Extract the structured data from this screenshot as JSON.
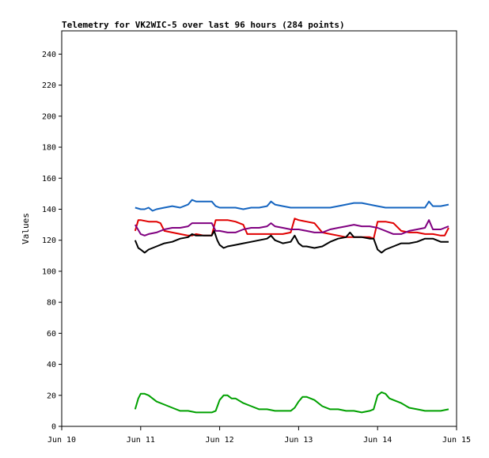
{
  "chart_data": {
    "type": "line",
    "title": "Telemetry for VK2WIC-5 over last 96 hours (284 points)",
    "xlabel": "",
    "ylabel": "Values",
    "ylim": [
      0,
      255
    ],
    "xlim": [
      "Jun 10",
      "Jun 15"
    ],
    "x_ticks": [
      "Jun 10",
      "Jun 11",
      "Jun 12",
      "Jun 13",
      "Jun 14",
      "Jun 15"
    ],
    "y_ticks": [
      0,
      20,
      40,
      60,
      80,
      100,
      120,
      140,
      160,
      180,
      200,
      220,
      240
    ],
    "grid": false,
    "legend": "none",
    "x_units": "day of June",
    "series": [
      {
        "color": "#1565c0",
        "x": [
          10.93,
          11.0,
          11.05,
          11.1,
          11.15,
          11.2,
          11.3,
          11.4,
          11.5,
          11.6,
          11.65,
          11.7,
          11.8,
          11.9,
          11.95,
          12.0,
          12.1,
          12.2,
          12.3,
          12.4,
          12.5,
          12.6,
          12.65,
          12.7,
          12.8,
          12.9,
          13.0,
          13.1,
          13.2,
          13.3,
          13.4,
          13.5,
          13.6,
          13.7,
          13.8,
          13.9,
          14.0,
          14.1,
          14.2,
          14.3,
          14.4,
          14.5,
          14.6,
          14.65,
          14.7,
          14.8,
          14.9
        ],
        "values": [
          141,
          140,
          140,
          141,
          139,
          140,
          141,
          142,
          141,
          143,
          146,
          145,
          145,
          145,
          142,
          141,
          141,
          141,
          140,
          141,
          141,
          142,
          145,
          143,
          142,
          141,
          141,
          141,
          141,
          141,
          141,
          142,
          143,
          144,
          144,
          143,
          142,
          141,
          141,
          141,
          141,
          141,
          141,
          145,
          142,
          142,
          143
        ]
      },
      {
        "color": "#e00000",
        "x": [
          10.93,
          10.97,
          11.0,
          11.1,
          11.2,
          11.25,
          11.3,
          11.4,
          11.5,
          11.6,
          11.65,
          11.7,
          11.8,
          11.9,
          11.95,
          12.0,
          12.1,
          12.2,
          12.3,
          12.35,
          12.4,
          12.5,
          12.6,
          12.7,
          12.8,
          12.9,
          12.95,
          13.0,
          13.1,
          13.2,
          13.3,
          13.4,
          13.5,
          13.6,
          13.7,
          13.8,
          13.9,
          13.95,
          14.0,
          14.1,
          14.2,
          14.3,
          14.4,
          14.5,
          14.6,
          14.7,
          14.8,
          14.85,
          14.9
        ],
        "values": [
          126,
          133,
          133,
          132,
          132,
          131,
          126,
          125,
          124,
          123,
          123,
          124,
          123,
          123,
          133,
          133,
          133,
          132,
          130,
          124,
          124,
          124,
          124,
          124,
          124,
          125,
          134,
          133,
          132,
          131,
          125,
          124,
          123,
          122,
          122,
          122,
          122,
          121,
          132,
          132,
          131,
          126,
          125,
          125,
          124,
          124,
          123,
          123,
          128
        ]
      },
      {
        "color": "#800080",
        "x": [
          10.93,
          11.0,
          11.05,
          11.1,
          11.2,
          11.3,
          11.4,
          11.5,
          11.6,
          11.65,
          11.7,
          11.8,
          11.9,
          11.95,
          12.0,
          12.1,
          12.2,
          12.3,
          12.4,
          12.5,
          12.6,
          12.65,
          12.7,
          12.8,
          12.9,
          13.0,
          13.1,
          13.2,
          13.3,
          13.4,
          13.5,
          13.6,
          13.7,
          13.8,
          13.9,
          14.0,
          14.1,
          14.2,
          14.3,
          14.4,
          14.5,
          14.6,
          14.65,
          14.7,
          14.8,
          14.9
        ],
        "values": [
          130,
          124,
          123,
          124,
          125,
          127,
          128,
          128,
          129,
          131,
          131,
          131,
          131,
          126,
          126,
          125,
          125,
          127,
          128,
          128,
          129,
          131,
          129,
          128,
          127,
          127,
          126,
          125,
          125,
          127,
          128,
          129,
          130,
          129,
          129,
          128,
          126,
          124,
          124,
          126,
          127,
          128,
          133,
          127,
          127,
          129
        ]
      },
      {
        "color": "#000000",
        "x": [
          10.93,
          10.97,
          11.0,
          11.05,
          11.1,
          11.2,
          11.3,
          11.4,
          11.5,
          11.6,
          11.65,
          11.7,
          11.8,
          11.9,
          11.93,
          11.97,
          12.0,
          12.05,
          12.1,
          12.2,
          12.3,
          12.4,
          12.5,
          12.6,
          12.65,
          12.7,
          12.8,
          12.9,
          12.95,
          13.0,
          13.05,
          13.1,
          13.2,
          13.3,
          13.4,
          13.5,
          13.6,
          13.65,
          13.7,
          13.8,
          13.9,
          13.95,
          14.0,
          14.05,
          14.1,
          14.2,
          14.3,
          14.4,
          14.5,
          14.6,
          14.7,
          14.8,
          14.9
        ],
        "values": [
          120,
          115,
          114,
          112,
          114,
          116,
          118,
          119,
          121,
          122,
          124,
          123,
          123,
          123,
          126,
          120,
          117,
          115,
          116,
          117,
          118,
          119,
          120,
          121,
          123,
          120,
          118,
          119,
          123,
          118,
          116,
          116,
          115,
          116,
          119,
          121,
          122,
          125,
          122,
          122,
          121,
          121,
          114,
          112,
          114,
          116,
          118,
          118,
          119,
          121,
          121,
          119,
          119
        ]
      },
      {
        "color": "#00a000",
        "x": [
          10.93,
          10.97,
          11.0,
          11.05,
          11.1,
          11.15,
          11.2,
          11.3,
          11.4,
          11.5,
          11.6,
          11.7,
          11.8,
          11.9,
          11.95,
          12.0,
          12.05,
          12.1,
          12.15,
          12.2,
          12.3,
          12.4,
          12.5,
          12.6,
          12.7,
          12.8,
          12.9,
          12.95,
          13.0,
          13.05,
          13.1,
          13.2,
          13.3,
          13.4,
          13.5,
          13.6,
          13.7,
          13.8,
          13.9,
          13.95,
          14.0,
          14.05,
          14.1,
          14.15,
          14.2,
          14.3,
          14.4,
          14.5,
          14.6,
          14.7,
          14.8,
          14.9
        ],
        "values": [
          11,
          18,
          21,
          21,
          20,
          18,
          16,
          14,
          12,
          10,
          10,
          9,
          9,
          9,
          10,
          17,
          20,
          20,
          18,
          18,
          15,
          13,
          11,
          11,
          10,
          10,
          10,
          12,
          16,
          19,
          19,
          17,
          13,
          11,
          11,
          10,
          10,
          9,
          10,
          11,
          20,
          22,
          21,
          18,
          17,
          15,
          12,
          11,
          10,
          10,
          10,
          11
        ]
      }
    ]
  }
}
